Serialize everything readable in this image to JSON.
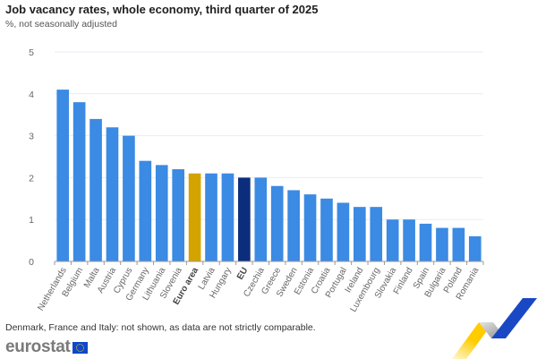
{
  "chart_data": {
    "type": "bar",
    "title": "Job vacancy rates, whole economy, third quarter of 2025",
    "subtitle": "%, not seasonally adjusted",
    "xlabel": "",
    "ylabel": "",
    "ylim": [
      0,
      5
    ],
    "yticks": [
      "0",
      "1",
      "2",
      "3",
      "4",
      "5"
    ],
    "grid": true,
    "categories": [
      "Netherlands",
      "Belgium",
      "Malta",
      "Austria",
      "Cyprus",
      "Germany",
      "Lithuania",
      "Slovenia",
      "Euro area",
      "Latvia",
      "Hungary",
      "EU",
      "Czechia",
      "Greece",
      "Sweden",
      "Estonia",
      "Croatia",
      "Portugal",
      "Ireland",
      "Luxembourg",
      "Slovakia",
      "Finland",
      "Spain",
      "Bulgaria",
      "Poland",
      "Romania"
    ],
    "values": [
      4.1,
      3.8,
      3.4,
      3.2,
      3.0,
      2.4,
      2.3,
      2.2,
      2.1,
      2.1,
      2.1,
      2.0,
      2.0,
      1.8,
      1.7,
      1.6,
      1.5,
      1.4,
      1.3,
      1.3,
      1.0,
      1.0,
      0.9,
      0.8,
      0.8,
      0.6
    ],
    "highlight": {
      "Euro area": "#d4a300",
      "EU": "#0b2d7c"
    },
    "bold_labels": [
      "Euro area",
      "EU"
    ],
    "default_color": "#3b8ae3"
  },
  "footnote": "Denmark, France and Italy: not shown, as data are not strictly comparable.",
  "logo": {
    "text": "eurostat",
    "icon": "eu-flag-icon"
  }
}
